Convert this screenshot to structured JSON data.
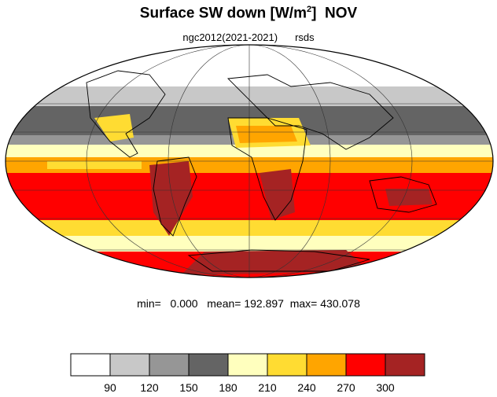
{
  "title": {
    "main": "Surface SW down [W/m",
    "sup": "2",
    "close": "]",
    "month": "NOV"
  },
  "subtitle": {
    "run": "ngc2012(2021-2021)",
    "variable": "rsds"
  },
  "stats": {
    "min_label": "min=",
    "min": "0.000",
    "mean_label": "mean=",
    "mean": "192.897",
    "max_label": "max=",
    "max": "430.078"
  },
  "projection": "mollweide",
  "colorbar": {
    "boundaries": [
      "90",
      "120",
      "150",
      "180",
      "210",
      "240",
      "270",
      "300"
    ],
    "colors": [
      "#ffffff",
      "#c8c8c8",
      "#969696",
      "#646464",
      "#ffffbe",
      "#ffdc32",
      "#ffa500",
      "#ff0000",
      "#a52323"
    ]
  }
}
